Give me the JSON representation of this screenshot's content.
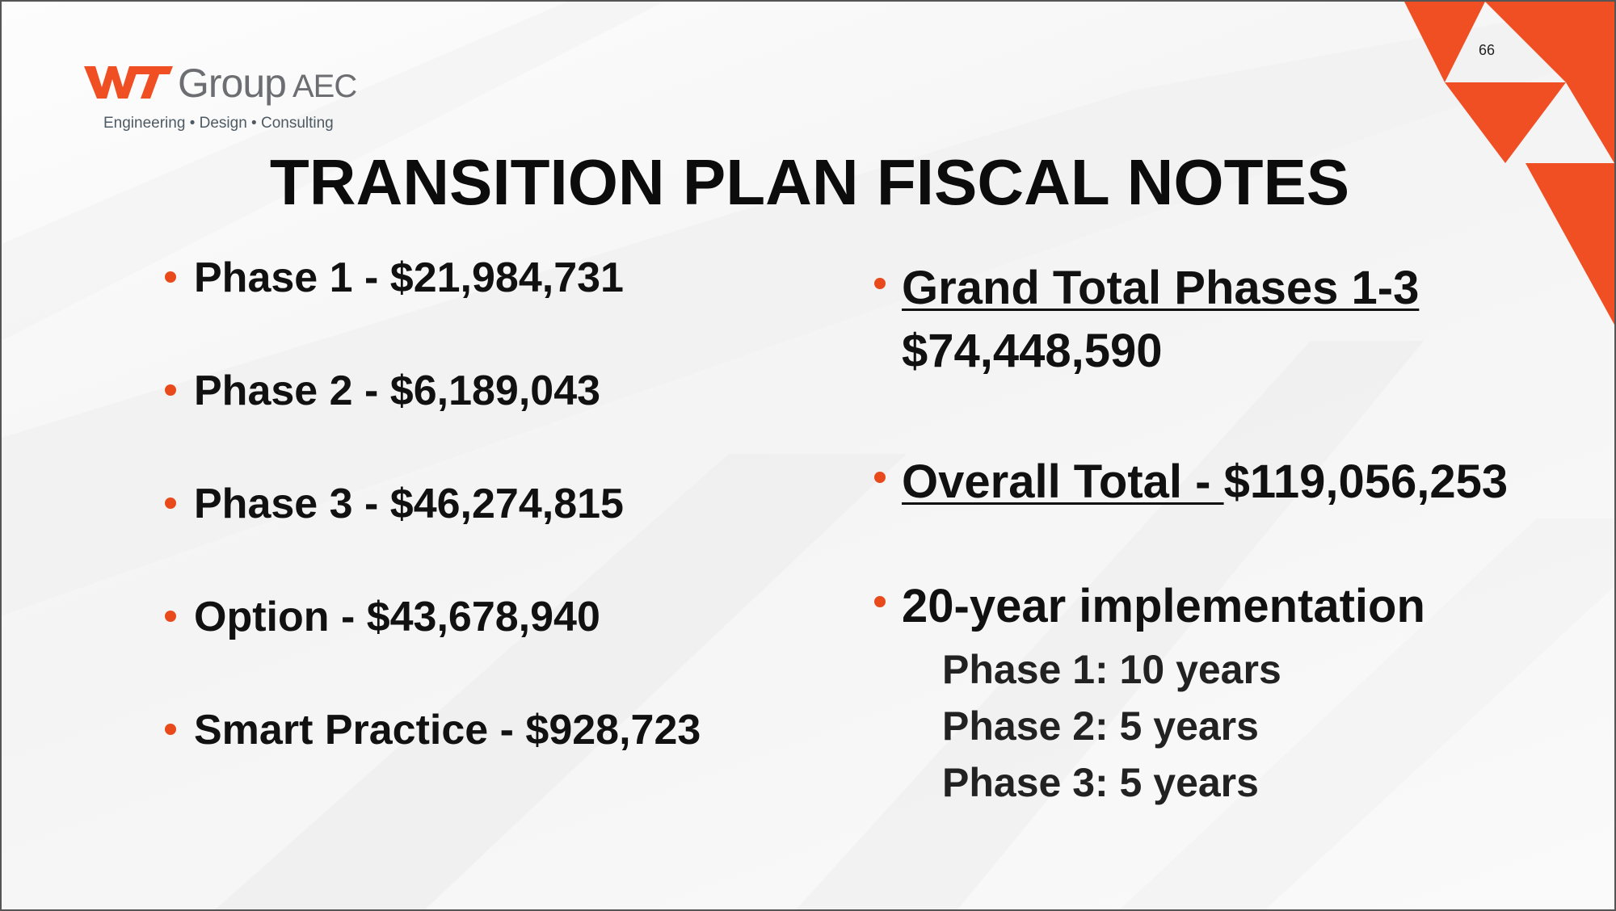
{
  "slide": {
    "page_number": "66",
    "title": "TRANSITION PLAN FISCAL NOTES"
  },
  "logo": {
    "mark_text": "WT",
    "name": "Group",
    "suffix": "AEC",
    "tagline": "Engineering • Design • Consulting"
  },
  "colors": {
    "accent": "#e84a1b",
    "title_text": "#0c0c0c",
    "logo_gray": "#6d6e71"
  },
  "left_bullets": [
    {
      "label": "Phase 1 - $21,984,731"
    },
    {
      "label": "Phase 2 - $6,189,043"
    },
    {
      "label": "Phase 3 - $46,274,815"
    },
    {
      "label": "Option - $43,678,940"
    },
    {
      "label": "Smart Practice - $928,723"
    }
  ],
  "right_bullets": {
    "grand_total": {
      "label": "Grand Total Phases 1-3",
      "value": "$74,448,590"
    },
    "overall_total": {
      "label": "Overall Total - ",
      "value": "$119,056,253"
    },
    "implementation": {
      "label": "20-year implementation",
      "phases": [
        {
          "text": "Phase 1: 10 years"
        },
        {
          "text": "Phase 2: 5 years"
        },
        {
          "text": "Phase 3: 5 years"
        }
      ]
    }
  }
}
